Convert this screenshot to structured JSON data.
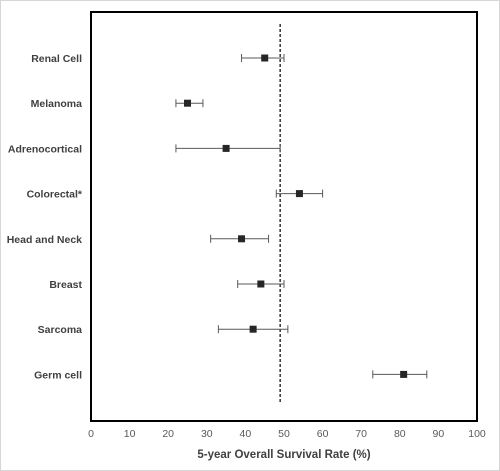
{
  "chart_data": {
    "type": "forest",
    "xlabel": "5-year Overall Survival Rate (%)",
    "xlim": [
      0,
      100
    ],
    "x_ticks": [
      "0",
      "10",
      "20",
      "30",
      "40",
      "50",
      "60",
      "70",
      "80",
      "90",
      "100"
    ],
    "reference_line": 49,
    "reference_line_style": "dashed",
    "grid": false,
    "categories": [
      "Renal Cell",
      "Melanoma",
      "Adrenocortical",
      "Colorectal*",
      "Head and Neck",
      "Breast",
      "Sarcoma",
      "Germ cell"
    ],
    "estimates": [
      45,
      25,
      35,
      54,
      39,
      44,
      42,
      81
    ],
    "ci_lower": [
      39,
      22,
      22,
      48,
      31,
      38,
      33,
      73
    ],
    "ci_upper": [
      50,
      29,
      49,
      60,
      46,
      50,
      51,
      87
    ],
    "colors": {
      "marker": "#262626",
      "error_bar": "#595959",
      "frame": "#000000",
      "reference": "#000000"
    }
  }
}
